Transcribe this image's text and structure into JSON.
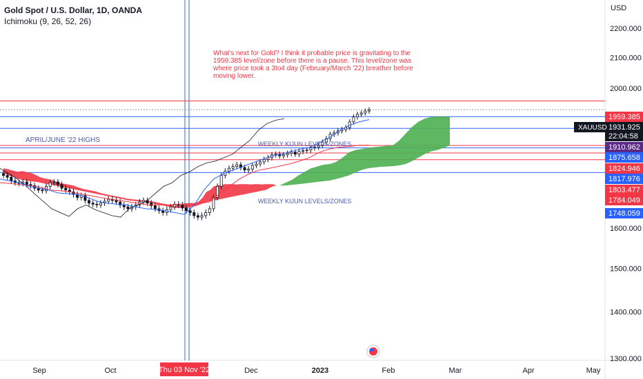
{
  "header": {
    "symbol_title": "Gold Spot / U.S. Dollar, 1D, OANDA",
    "indicator": "Ichimoku (9, 26, 52, 26)"
  },
  "annotation": {
    "text": "What's next for Gold? I think it probable price is gravitating to the 1959.385 level/zone before there is a pause. This level/zone was where price took a 3to4 day (February/March '22) breather before moving lower."
  },
  "labels": {
    "april_june": "APRIL/JUNE '22 HIGHS",
    "kijun_1": "WEEKLY KIJUN LEVELS/ZONES",
    "kijun_2": "WEEKLY KIJUN LEVELS/ZONES"
  },
  "price_axis": {
    "currency": "USD",
    "ticks": [
      "2200.000",
      "2100.000",
      "2000.000",
      "1600.000",
      "1500.000",
      "1400.000",
      "1300.000"
    ]
  },
  "time_axis": {
    "labels": [
      "Sep",
      "Oct",
      "Dec",
      "2023",
      "Feb",
      "Mar",
      "Apr",
      "May"
    ],
    "crosshair_label": "Thu 03 Nov '22"
  },
  "price_labels": [
    {
      "value": "1959.385",
      "bg": "#f23645"
    },
    {
      "value": "1931.925",
      "bg": "#131722"
    },
    {
      "value": "22:04:58",
      "bg": "#131722"
    },
    {
      "value": "1910.962",
      "bg": "#5b2a86"
    },
    {
      "value": "1875.658",
      "bg": "#2962ff"
    },
    {
      "value": "1824.946",
      "bg": "#f23645"
    },
    {
      "value": "1817.976",
      "bg": "#2962ff"
    },
    {
      "value": "1803.477",
      "bg": "#f23645"
    },
    {
      "value": "1784.049",
      "bg": "#f23645"
    },
    {
      "value": "1748.059",
      "bg": "#2962ff"
    }
  ],
  "ticker_badge": "XAUUSD",
  "colors": {
    "up": "#131722",
    "down": "#131722",
    "red": "#f23645",
    "blue": "#2962ff",
    "cloud_bull": "#4caf50",
    "cloud_bear": "#f23645",
    "crosshair": "#2962ff"
  },
  "chart_data": {
    "type": "candlestick",
    "y_scale": "log",
    "ylim": [
      1280,
      2290
    ],
    "horizontal_levels": [
      {
        "value": 1959.385,
        "color": "red"
      },
      {
        "value": 1910.962,
        "color": "blue"
      },
      {
        "value": 1875.658,
        "color": "blue"
      },
      {
        "value": 1824.946,
        "color": "red"
      },
      {
        "value": 1817.976,
        "color": "blue"
      },
      {
        "value": 1803.477,
        "color": "red"
      },
      {
        "value": 1784.049,
        "color": "red"
      },
      {
        "value": 1748.059,
        "color": "blue"
      },
      {
        "value": 1931.925,
        "color": "gray"
      }
    ],
    "close_series_approx": [
      1740,
      1735,
      1725,
      1720,
      1718,
      1722,
      1715,
      1712,
      1705,
      1700,
      1698,
      1710,
      1720,
      1722,
      1715,
      1705,
      1700,
      1695,
      1688,
      1680,
      1685,
      1672,
      1665,
      1662,
      1660,
      1665,
      1670,
      1675,
      1672,
      1668,
      1660,
      1655,
      1650,
      1655,
      1660,
      1668,
      1672,
      1665,
      1658,
      1650,
      1645,
      1640,
      1648,
      1655,
      1662,
      1660,
      1652,
      1645,
      1640,
      1632,
      1628,
      1632,
      1640,
      1650,
      1680,
      1710,
      1740,
      1752,
      1760,
      1765,
      1770,
      1762,
      1755,
      1758,
      1768,
      1772,
      1778,
      1785,
      1790,
      1798,
      1800,
      1795,
      1798,
      1802,
      1806,
      1800,
      1808,
      1810,
      1812,
      1818,
      1820,
      1826,
      1835,
      1845,
      1858,
      1862,
      1868,
      1872,
      1878,
      1895,
      1910,
      1918,
      1922,
      1928,
      1931.925
    ]
  }
}
